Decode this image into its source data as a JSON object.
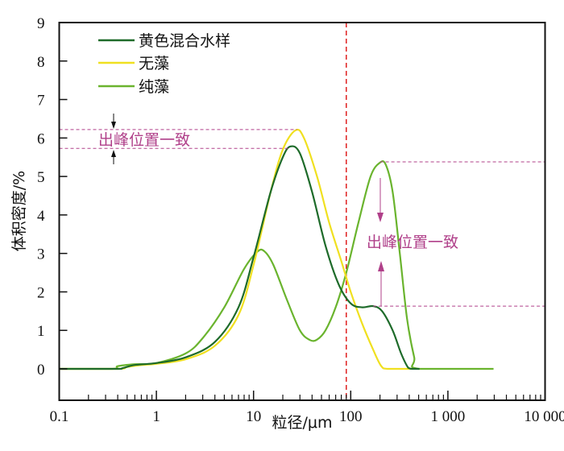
{
  "chart_data": {
    "type": "line",
    "title": "",
    "xlabel": "粒径/μm",
    "ylabel": "体积密度/%",
    "xscale": "log",
    "xlim": [
      0.1,
      10000
    ],
    "ylim": [
      0,
      9
    ],
    "xticks": [
      0.1,
      1,
      10,
      100,
      1000,
      10000
    ],
    "xtick_labels": [
      "0.1",
      "1",
      "10",
      "100",
      "1 000",
      "10 000"
    ],
    "yticks": [
      0,
      1,
      2,
      3,
      4,
      5,
      6,
      7,
      8,
      9
    ],
    "ytick_labels": [
      "0",
      "1",
      "2",
      "3",
      "4",
      "5",
      "6",
      "7",
      "8",
      "9"
    ],
    "legend_position": "top-left",
    "series": [
      {
        "name": "黄色混合水样",
        "color": "#1e6b2a",
        "points": [
          [
            0.1,
            0
          ],
          [
            0.38,
            0
          ],
          [
            0.45,
            0.02
          ],
          [
            0.6,
            0.1
          ],
          [
            1,
            0.15
          ],
          [
            2,
            0.3
          ],
          [
            4,
            0.7
          ],
          [
            7,
            1.6
          ],
          [
            10,
            2.9
          ],
          [
            15,
            4.6
          ],
          [
            20,
            5.5
          ],
          [
            24,
            5.78
          ],
          [
            30,
            5.6
          ],
          [
            40,
            4.6
          ],
          [
            55,
            3.2
          ],
          [
            75,
            2.2
          ],
          [
            100,
            1.7
          ],
          [
            130,
            1.6
          ],
          [
            170,
            1.63
          ],
          [
            210,
            1.5
          ],
          [
            270,
            1.0
          ],
          [
            330,
            0.4
          ],
          [
            390,
            0.03
          ],
          [
            430,
            0
          ],
          [
            510,
            0
          ]
        ]
      },
      {
        "name": "无藻",
        "color": "#f0e020",
        "points": [
          [
            0.1,
            0
          ],
          [
            0.4,
            0
          ],
          [
            0.5,
            0.05
          ],
          [
            0.7,
            0.1
          ],
          [
            1,
            0.13
          ],
          [
            2,
            0.25
          ],
          [
            4,
            0.6
          ],
          [
            7,
            1.4
          ],
          [
            10,
            2.7
          ],
          [
            15,
            4.6
          ],
          [
            20,
            5.7
          ],
          [
            27,
            6.2
          ],
          [
            33,
            6.0
          ],
          [
            45,
            5.0
          ],
          [
            60,
            3.8
          ],
          [
            80,
            2.8
          ],
          [
            100,
            2.0
          ],
          [
            130,
            1.2
          ],
          [
            170,
            0.5
          ],
          [
            205,
            0.08
          ],
          [
            240,
            0
          ],
          [
            420,
            0
          ]
        ]
      },
      {
        "name": "纯藻",
        "color": "#6ab42e",
        "points": [
          [
            0.1,
            0
          ],
          [
            0.35,
            0
          ],
          [
            0.4,
            0.07
          ],
          [
            0.6,
            0.12
          ],
          [
            1,
            0.15
          ],
          [
            2,
            0.4
          ],
          [
            3,
            0.8
          ],
          [
            5,
            1.6
          ],
          [
            8,
            2.6
          ],
          [
            11,
            3.05
          ],
          [
            13,
            3.05
          ],
          [
            16,
            2.7
          ],
          [
            22,
            1.8
          ],
          [
            30,
            1.0
          ],
          [
            38,
            0.75
          ],
          [
            45,
            0.76
          ],
          [
            55,
            1.0
          ],
          [
            70,
            1.6
          ],
          [
            90,
            2.5
          ],
          [
            120,
            3.8
          ],
          [
            160,
            5.0
          ],
          [
            200,
            5.36
          ],
          [
            230,
            5.3
          ],
          [
            270,
            4.6
          ],
          [
            320,
            3.0
          ],
          [
            380,
            1.3
          ],
          [
            450,
            0.3
          ],
          [
            500,
            0
          ],
          [
            2950,
            0
          ]
        ]
      }
    ],
    "reference_line": {
      "x": 90,
      "color": "#e02020",
      "style": "dashed"
    },
    "annotations": [
      {
        "text": "出峰位置一致",
        "levels": [
          6.22,
          5.73
        ],
        "color": "#b0408a"
      },
      {
        "text": "出峰位置一致",
        "levels": [
          5.38,
          1.63
        ],
        "color": "#b0408a"
      }
    ]
  }
}
